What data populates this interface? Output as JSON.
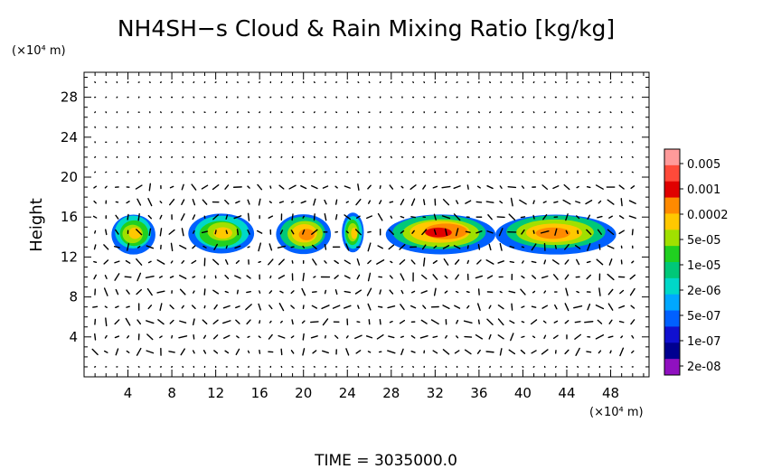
{
  "chart_data": {
    "type": "heatmap",
    "title": "NH4SH−s Cloud & Rain Mixing Ratio [kg/kg]",
    "xlabel": "",
    "ylabel": "Height",
    "x_unit": "(×10⁴ m)",
    "y_unit": "(×10⁴ m)",
    "xlim": [
      0,
      51.5
    ],
    "ylim": [
      0,
      30.5
    ],
    "x_ticks": [
      4,
      8,
      12,
      16,
      20,
      24,
      28,
      32,
      36,
      40,
      44,
      48
    ],
    "y_ticks": [
      4,
      8,
      12,
      16,
      20,
      24,
      28
    ],
    "colorbar": {
      "labels": [
        "0.005",
        "0.001",
        "0.0002",
        "5e-05",
        "1e-05",
        "2e-06",
        "5e-07",
        "1e-07",
        "2e-08"
      ],
      "colors": [
        "#ff9a9a",
        "#ff4a3a",
        "#e00000",
        "#ff8a00",
        "#ffc800",
        "#a0e000",
        "#20d020",
        "#00c878",
        "#00d8c8",
        "#00a8ff",
        "#0060ff",
        "#1010d0",
        "#000090",
        "#9010c0"
      ]
    },
    "time_label": "TIME  =  3035000.0",
    "cloud_layer": {
      "bottom": 12.3,
      "top": 16.5,
      "segments": [
        {
          "x0": 2.5,
          "x1": 6.5,
          "peak": "5e-05"
        },
        {
          "x0": 9.5,
          "x1": 15.5,
          "peak": "5e-05"
        },
        {
          "x0": 17.5,
          "x1": 22.5,
          "peak": "0.0002"
        },
        {
          "x0": 23.5,
          "x1": 25.5,
          "peak": "5e-05"
        },
        {
          "x0": 27.5,
          "x1": 37.5,
          "peak": "0.001"
        },
        {
          "x0": 37.5,
          "x1": 48.5,
          "peak": "0.0002"
        }
      ]
    },
    "wind_vectors": "present"
  }
}
